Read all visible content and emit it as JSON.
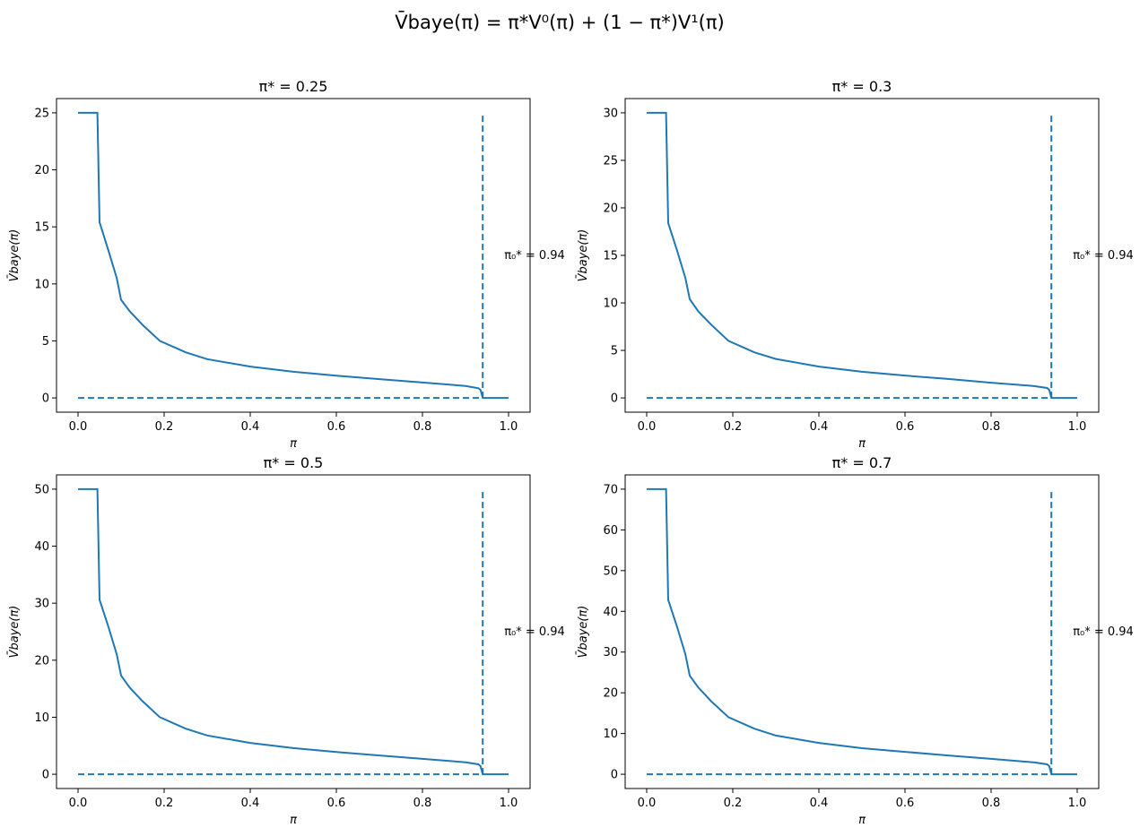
{
  "figure": {
    "suptitle": "V̄baye(π) = π*V⁰(π) + (1 − π*)V¹(π)",
    "colors": {
      "series": "#1f77b4",
      "axes": "#000000",
      "background": "#ffffff"
    }
  },
  "chart_data": [
    {
      "type": "line",
      "title": "π* = 0.25",
      "xlabel": "π",
      "ylabel": "V̄baye(π)",
      "xlim": [
        -0.05,
        1.05
      ],
      "ylim": [
        -1.25,
        26.25
      ],
      "xticks": [
        0.0,
        0.2,
        0.4,
        0.6,
        0.8,
        1.0
      ],
      "xtick_labels": [
        "0.0",
        "0.2",
        "0.4",
        "0.6",
        "0.8",
        "1.0"
      ],
      "yticks": [
        0,
        5,
        10,
        15,
        20,
        25
      ],
      "ytick_labels": [
        "0",
        "5",
        "10",
        "15",
        "20",
        "25"
      ],
      "annotation": "π₀* = 0.94",
      "annotation_position": {
        "x": 0.99,
        "y": 12.5
      },
      "series": [
        {
          "style": "solid",
          "x": [
            0.0,
            0.045,
            0.05,
            0.07,
            0.09,
            0.1,
            0.12,
            0.15,
            0.19,
            0.25,
            0.3,
            0.4,
            0.5,
            0.6,
            0.7,
            0.8,
            0.9,
            0.93,
            0.935,
            0.94,
            1.0
          ],
          "y": [
            25.0,
            25.0,
            15.4,
            13.0,
            10.5,
            8.6,
            7.6,
            6.4,
            5.0,
            4.0,
            3.4,
            2.75,
            2.3,
            1.95,
            1.65,
            1.35,
            1.05,
            0.85,
            0.7,
            0.0,
            0.0
          ]
        },
        {
          "style": "dashed",
          "x": [
            0.0,
            0.94
          ],
          "y": [
            0.0,
            0.0
          ]
        },
        {
          "style": "dashed",
          "x": [
            0.94,
            0.94
          ],
          "y": [
            0.0,
            25.0
          ]
        }
      ]
    },
    {
      "type": "line",
      "title": "π* = 0.3",
      "xlabel": "π",
      "ylabel": "V̄baye(π)",
      "xlim": [
        -0.05,
        1.05
      ],
      "ylim": [
        -1.5,
        31.5
      ],
      "xticks": [
        0.0,
        0.2,
        0.4,
        0.6,
        0.8,
        1.0
      ],
      "xtick_labels": [
        "0.0",
        "0.2",
        "0.4",
        "0.6",
        "0.8",
        "1.0"
      ],
      "yticks": [
        0,
        5,
        10,
        15,
        20,
        25,
        30
      ],
      "ytick_labels": [
        "0",
        "5",
        "10",
        "15",
        "20",
        "25",
        "30"
      ],
      "annotation": "π₀* = 0.94",
      "annotation_position": {
        "x": 0.99,
        "y": 15.0
      },
      "series": [
        {
          "style": "solid",
          "x": [
            0.0,
            0.045,
            0.05,
            0.07,
            0.09,
            0.1,
            0.12,
            0.15,
            0.19,
            0.25,
            0.3,
            0.4,
            0.5,
            0.6,
            0.7,
            0.8,
            0.9,
            0.93,
            0.935,
            0.94,
            1.0
          ],
          "y": [
            30.0,
            30.0,
            18.4,
            15.6,
            12.6,
            10.4,
            9.1,
            7.7,
            6.0,
            4.8,
            4.1,
            3.3,
            2.75,
            2.35,
            2.0,
            1.6,
            1.25,
            1.05,
            0.85,
            0.0,
            0.0
          ]
        },
        {
          "style": "dashed",
          "x": [
            0.0,
            0.94
          ],
          "y": [
            0.0,
            0.0
          ]
        },
        {
          "style": "dashed",
          "x": [
            0.94,
            0.94
          ],
          "y": [
            0.0,
            30.0
          ]
        }
      ]
    },
    {
      "type": "line",
      "title": "π* = 0.5",
      "xlabel": "π",
      "ylabel": "V̄baye(π)",
      "xlim": [
        -0.05,
        1.05
      ],
      "ylim": [
        -2.5,
        52.5
      ],
      "xticks": [
        0.0,
        0.2,
        0.4,
        0.6,
        0.8,
        1.0
      ],
      "xtick_labels": [
        "0.0",
        "0.2",
        "0.4",
        "0.6",
        "0.8",
        "1.0"
      ],
      "yticks": [
        0,
        10,
        20,
        30,
        40,
        50
      ],
      "ytick_labels": [
        "0",
        "10",
        "20",
        "30",
        "40",
        "50"
      ],
      "annotation": "π₀* = 0.94",
      "annotation_position": {
        "x": 0.99,
        "y": 25.0
      },
      "series": [
        {
          "style": "solid",
          "x": [
            0.0,
            0.045,
            0.05,
            0.07,
            0.09,
            0.1,
            0.12,
            0.15,
            0.19,
            0.25,
            0.3,
            0.4,
            0.5,
            0.6,
            0.7,
            0.8,
            0.9,
            0.93,
            0.935,
            0.94,
            1.0
          ],
          "y": [
            50.0,
            50.0,
            30.6,
            26.0,
            21.0,
            17.3,
            15.2,
            12.8,
            10.0,
            8.0,
            6.8,
            5.5,
            4.6,
            3.9,
            3.3,
            2.7,
            2.1,
            1.75,
            1.4,
            0.0,
            0.0
          ]
        },
        {
          "style": "dashed",
          "x": [
            0.0,
            0.94
          ],
          "y": [
            0.0,
            0.0
          ]
        },
        {
          "style": "dashed",
          "x": [
            0.94,
            0.94
          ],
          "y": [
            0.0,
            50.0
          ]
        }
      ]
    },
    {
      "type": "line",
      "title": "π* = 0.7",
      "xlabel": "π",
      "ylabel": "V̄baye(π)",
      "xlim": [
        -0.05,
        1.05
      ],
      "ylim": [
        -3.5,
        73.5
      ],
      "xticks": [
        0.0,
        0.2,
        0.4,
        0.6,
        0.8,
        1.0
      ],
      "xtick_labels": [
        "0.0",
        "0.2",
        "0.4",
        "0.6",
        "0.8",
        "1.0"
      ],
      "yticks": [
        0,
        10,
        20,
        30,
        40,
        50,
        60,
        70
      ],
      "ytick_labels": [
        "0",
        "10",
        "20",
        "30",
        "40",
        "50",
        "60",
        "70"
      ],
      "annotation": "π₀* = 0.94",
      "annotation_position": {
        "x": 0.99,
        "y": 35.0
      },
      "series": [
        {
          "style": "solid",
          "x": [
            0.0,
            0.045,
            0.05,
            0.07,
            0.09,
            0.1,
            0.12,
            0.15,
            0.19,
            0.25,
            0.3,
            0.4,
            0.5,
            0.6,
            0.7,
            0.8,
            0.9,
            0.93,
            0.935,
            0.94,
            1.0
          ],
          "y": [
            70.0,
            70.0,
            42.8,
            36.4,
            29.4,
            24.2,
            21.3,
            17.9,
            14.0,
            11.2,
            9.5,
            7.7,
            6.4,
            5.5,
            4.6,
            3.8,
            2.9,
            2.45,
            2.0,
            0.0,
            0.0
          ]
        },
        {
          "style": "dashed",
          "x": [
            0.0,
            0.94
          ],
          "y": [
            0.0,
            0.0
          ]
        },
        {
          "style": "dashed",
          "x": [
            0.94,
            0.94
          ],
          "y": [
            0.0,
            70.0
          ]
        }
      ]
    }
  ]
}
